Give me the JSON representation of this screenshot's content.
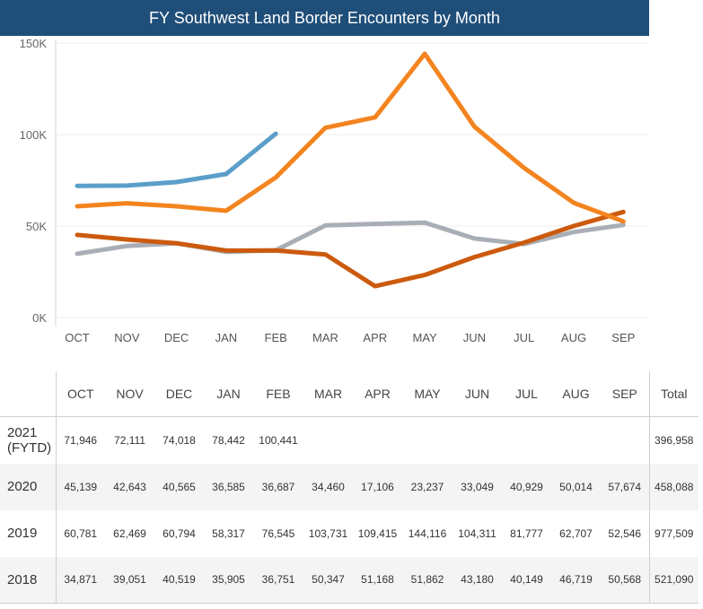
{
  "chart_data": {
    "type": "line",
    "title": "FY Southwest Land Border Encounters by Month",
    "categories": [
      "OCT",
      "NOV",
      "DEC",
      "JAN",
      "FEB",
      "MAR",
      "APR",
      "MAY",
      "JUN",
      "JUL",
      "AUG",
      "SEP"
    ],
    "ylim": [
      0,
      150000
    ],
    "y_ticks": [
      {
        "value": 0,
        "label": "0K"
      },
      {
        "value": 50000,
        "label": "50K"
      },
      {
        "value": 100000,
        "label": "100K"
      },
      {
        "value": 150000,
        "label": "150K"
      }
    ],
    "grid": true,
    "legend": "none",
    "series": [
      {
        "name": "2021 (FYTD)",
        "color": "#5b9ec9",
        "values": [
          71946,
          72111,
          74018,
          78442,
          100441,
          null,
          null,
          null,
          null,
          null,
          null,
          null
        ]
      },
      {
        "name": "2020",
        "color": "#cc5a0e",
        "values": [
          45139,
          42643,
          40565,
          36585,
          36687,
          34460,
          17106,
          23237,
          33049,
          40929,
          50014,
          57674
        ]
      },
      {
        "name": "2019",
        "color": "#f4841f",
        "values": [
          60781,
          62469,
          60794,
          58317,
          76545,
          103731,
          109415,
          144116,
          104311,
          81777,
          62707,
          52546
        ]
      },
      {
        "name": "2018",
        "color": "#a9aeb6",
        "values": [
          34871,
          39051,
          40519,
          35905,
          36751,
          50347,
          51168,
          51862,
          43180,
          40149,
          46719,
          50568
        ]
      }
    ]
  },
  "table": {
    "total_label": "Total",
    "rows": [
      {
        "year": "2021",
        "year_sub": "(FYTD)",
        "cells": [
          "71,946",
          "72,111",
          "74,018",
          "78,442",
          "100,441",
          "",
          "",
          "",
          "",
          "",
          "",
          ""
        ],
        "total": "396,958"
      },
      {
        "year": "2020",
        "year_sub": "",
        "cells": [
          "45,139",
          "42,643",
          "40,565",
          "36,585",
          "36,687",
          "34,460",
          "17,106",
          "23,237",
          "33,049",
          "40,929",
          "50,014",
          "57,674"
        ],
        "total": "458,088"
      },
      {
        "year": "2019",
        "year_sub": "",
        "cells": [
          "60,781",
          "62,469",
          "60,794",
          "58,317",
          "76,545",
          "103,731",
          "109,415",
          "144,116",
          "104,311",
          "81,777",
          "62,707",
          "52,546"
        ],
        "total": "977,509"
      },
      {
        "year": "2018",
        "year_sub": "",
        "cells": [
          "34,871",
          "39,051",
          "40,519",
          "35,905",
          "36,751",
          "50,347",
          "51,168",
          "51,862",
          "43,180",
          "40,149",
          "46,719",
          "50,568"
        ],
        "total": "521,090"
      }
    ]
  }
}
